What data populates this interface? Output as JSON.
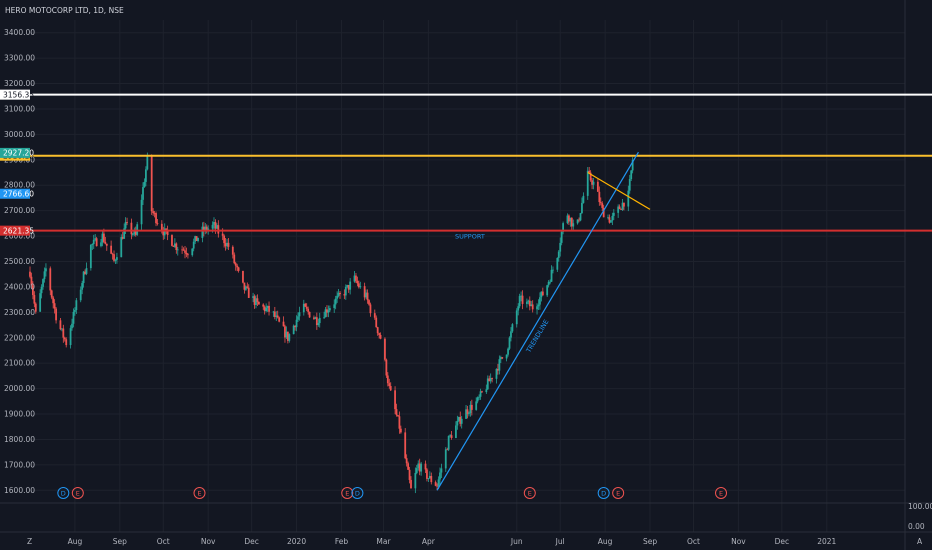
{
  "header": {
    "title": "HERO MOTOCORP LTD, 1D, NSE"
  },
  "footer": {
    "left_glyph": "Z",
    "right_glyph": "A"
  },
  "colors": {
    "bg": "#131722",
    "grid": "#1e222d",
    "up": "#26a69a",
    "down": "#ef5350",
    "resistance": "#ffffff",
    "top": "#fbc02d",
    "support": "#d32f2f",
    "trend": "#2196f3",
    "wedge": "#ffb300",
    "blue_label": "#2196f3",
    "teal_label": "#26a69a"
  },
  "chart_data": {
    "type": "candlestick",
    "title": "HERO MOTOCORP LTD, 1D, NSE",
    "y_ticks": [
      "3400.00",
      "3300.00",
      "3200.00",
      "3100.00",
      "3000.00",
      "2900.00",
      "2800.00",
      "2700.00",
      "2600.00",
      "2500.00",
      "2400.00",
      "2300.00",
      "2200.00",
      "2100.00",
      "2000.00",
      "1900.00",
      "1800.00",
      "1700.00",
      "1600.00"
    ],
    "ylim": [
      1550,
      3450
    ],
    "x_ticks": [
      "Aug",
      "Sep",
      "Oct",
      "Nov",
      "Dec",
      "2020",
      "Feb",
      "Mar",
      "Apr",
      "Jun",
      "Jul",
      "Aug",
      "Sep",
      "Oct",
      "Nov",
      "Dec",
      "2021"
    ],
    "x_tick_dates": [
      "2019-08-01",
      "2019-09-01",
      "2019-10-01",
      "2019-11-01",
      "2019-12-01",
      "2020-01-01",
      "2020-02-01",
      "2020-03-01",
      "2020-04-01",
      "2020-06-01",
      "2020-07-01",
      "2020-08-01",
      "2020-09-01",
      "2020-10-01",
      "2020-11-01",
      "2020-12-01",
      "2021-01-01"
    ],
    "price_keypoints": [
      [
        "2019-07-01",
        2460
      ],
      [
        "2019-07-05",
        2290
      ],
      [
        "2019-07-12",
        2470
      ],
      [
        "2019-07-20",
        2260
      ],
      [
        "2019-07-26",
        2180
      ],
      [
        "2019-08-02",
        2330
      ],
      [
        "2019-08-12",
        2560
      ],
      [
        "2019-08-20",
        2600
      ],
      [
        "2019-08-28",
        2500
      ],
      [
        "2019-09-05",
        2640
      ],
      [
        "2019-09-12",
        2600
      ],
      [
        "2019-09-20",
        2900
      ],
      [
        "2019-09-23",
        2700
      ],
      [
        "2019-10-01",
        2620
      ],
      [
        "2019-10-10",
        2560
      ],
      [
        "2019-10-18",
        2540
      ],
      [
        "2019-10-28",
        2620
      ],
      [
        "2019-11-05",
        2640
      ],
      [
        "2019-11-15",
        2560
      ],
      [
        "2019-11-25",
        2400
      ],
      [
        "2019-12-05",
        2330
      ],
      [
        "2019-12-15",
        2300
      ],
      [
        "2019-12-26",
        2200
      ],
      [
        "2020-01-05",
        2320
      ],
      [
        "2020-01-15",
        2270
      ],
      [
        "2020-01-25",
        2330
      ],
      [
        "2020-02-03",
        2380
      ],
      [
        "2020-02-10",
        2430
      ],
      [
        "2020-02-18",
        2360
      ],
      [
        "2020-02-28",
        2200
      ],
      [
        "2020-03-05",
        2000
      ],
      [
        "2020-03-12",
        1850
      ],
      [
        "2020-03-20",
        1600
      ],
      [
        "2020-03-25",
        1700
      ],
      [
        "2020-04-01",
        1650
      ],
      [
        "2020-04-07",
        1620
      ],
      [
        "2020-04-15",
        1800
      ],
      [
        "2020-04-25",
        1900
      ],
      [
        "2020-05-05",
        1950
      ],
      [
        "2020-05-15",
        2050
      ],
      [
        "2020-05-25",
        2150
      ],
      [
        "2020-06-03",
        2350
      ],
      [
        "2020-06-12",
        2320
      ],
      [
        "2020-06-20",
        2380
      ],
      [
        "2020-06-28",
        2500
      ],
      [
        "2020-07-05",
        2700
      ],
      [
        "2020-07-12",
        2620
      ],
      [
        "2020-07-20",
        2840
      ],
      [
        "2020-07-25",
        2800
      ],
      [
        "2020-07-30",
        2700
      ],
      [
        "2020-08-05",
        2660
      ],
      [
        "2020-08-12",
        2720
      ],
      [
        "2020-08-17",
        2760
      ],
      [
        "2020-08-20",
        2900
      ],
      [
        "2020-08-21",
        2927
      ]
    ],
    "horizontal_lines": [
      {
        "label": "3156.35",
        "value": 3156.35,
        "color": "#ffffff"
      },
      {
        "label": "2916.15",
        "value": 2916.15,
        "color": "#fbc02d"
      },
      {
        "label": "2621.35",
        "value": 2621.35,
        "color": "#d32f2f"
      }
    ],
    "price_labels": [
      {
        "label": "2927.20",
        "value": 2927.2,
        "color": "#26a69a"
      },
      {
        "label": "2766.60",
        "value": 2766.6,
        "color": "#2196f3"
      }
    ],
    "trend_line": {
      "label": "TRENDLINE",
      "from": [
        "2020-04-07",
        1600
      ],
      "to": [
        "2020-08-24",
        2930
      ]
    },
    "wedge_line": {
      "from": [
        "2020-07-20",
        2850
      ],
      "to": [
        "2020-09-01",
        2705
      ]
    },
    "support_label": "SUPPORT",
    "events": [
      {
        "type": "D",
        "date": "2019-07-24"
      },
      {
        "type": "E",
        "date": "2019-08-03"
      },
      {
        "type": "E",
        "date": "2019-10-26"
      },
      {
        "type": "E",
        "date": "2020-02-05"
      },
      {
        "type": "D",
        "date": "2020-02-12"
      },
      {
        "type": "E",
        "date": "2020-06-10"
      },
      {
        "type": "D",
        "date": "2020-07-31"
      },
      {
        "type": "E",
        "date": "2020-08-10"
      },
      {
        "type": "E",
        "date": "2020-10-20"
      }
    ],
    "volume_axis": {
      "ticks": [
        "100.00",
        "0.00"
      ]
    },
    "grid": true,
    "legend": "none"
  }
}
